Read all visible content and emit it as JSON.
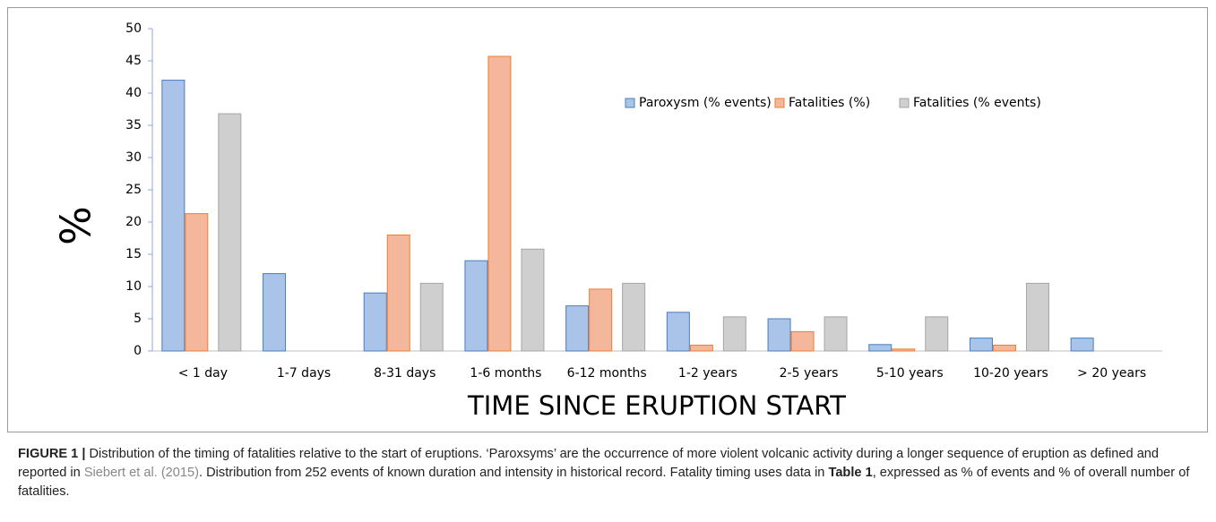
{
  "chart_data": {
    "type": "bar",
    "y_label": "%",
    "x_label": "TIME SINCE ERUPTION START",
    "categories": [
      "< 1 day",
      "1-7 days",
      "8-31 days",
      "1-6 months",
      "6-12 months",
      "1-2 years",
      "2-5 years",
      "5-10 years",
      "10-20 years",
      "> 20 years"
    ],
    "series": [
      {
        "name": "Paroxysm (% events)",
        "color": "#a9c4e8",
        "stroke": "#4a7ebb",
        "values": [
          42,
          12,
          9,
          14,
          7,
          6,
          5,
          1,
          2,
          2
        ]
      },
      {
        "name": "Fatalities (%)",
        "color": "#f5b79c",
        "stroke": "#ed7d31",
        "values": [
          21.3,
          0,
          18,
          45.7,
          9.6,
          0.9,
          3,
          0.3,
          0.9,
          0
        ]
      },
      {
        "name": "Fatalities (% events)",
        "color": "#cfcfcf",
        "stroke": "#a5a5a5",
        "values": [
          36.8,
          0,
          10.5,
          15.8,
          10.5,
          5.3,
          5.3,
          5.3,
          10.5,
          0
        ]
      }
    ],
    "ylim": [
      0,
      50
    ],
    "yticks": [
      0,
      5,
      10,
      15,
      20,
      25,
      30,
      35,
      40,
      45,
      50
    ],
    "legend": "top-right",
    "grid": false
  },
  "caption": {
    "label": "FIGURE 1 |",
    "parts": [
      " Distribution of the timing of fatalities relative to the start of eruptions. ‘Paroxsyms’ are the occurrence of more violent volcanic activity during a longer sequence of eruption as defined and reported in ",
      "Siebert et al. (2015)",
      ". Distribution from 252 events of known duration and intensity in historical record. Fatality timing uses data in ",
      "Table 1",
      ", expressed as % of events and % of overall number of fatalities."
    ]
  }
}
